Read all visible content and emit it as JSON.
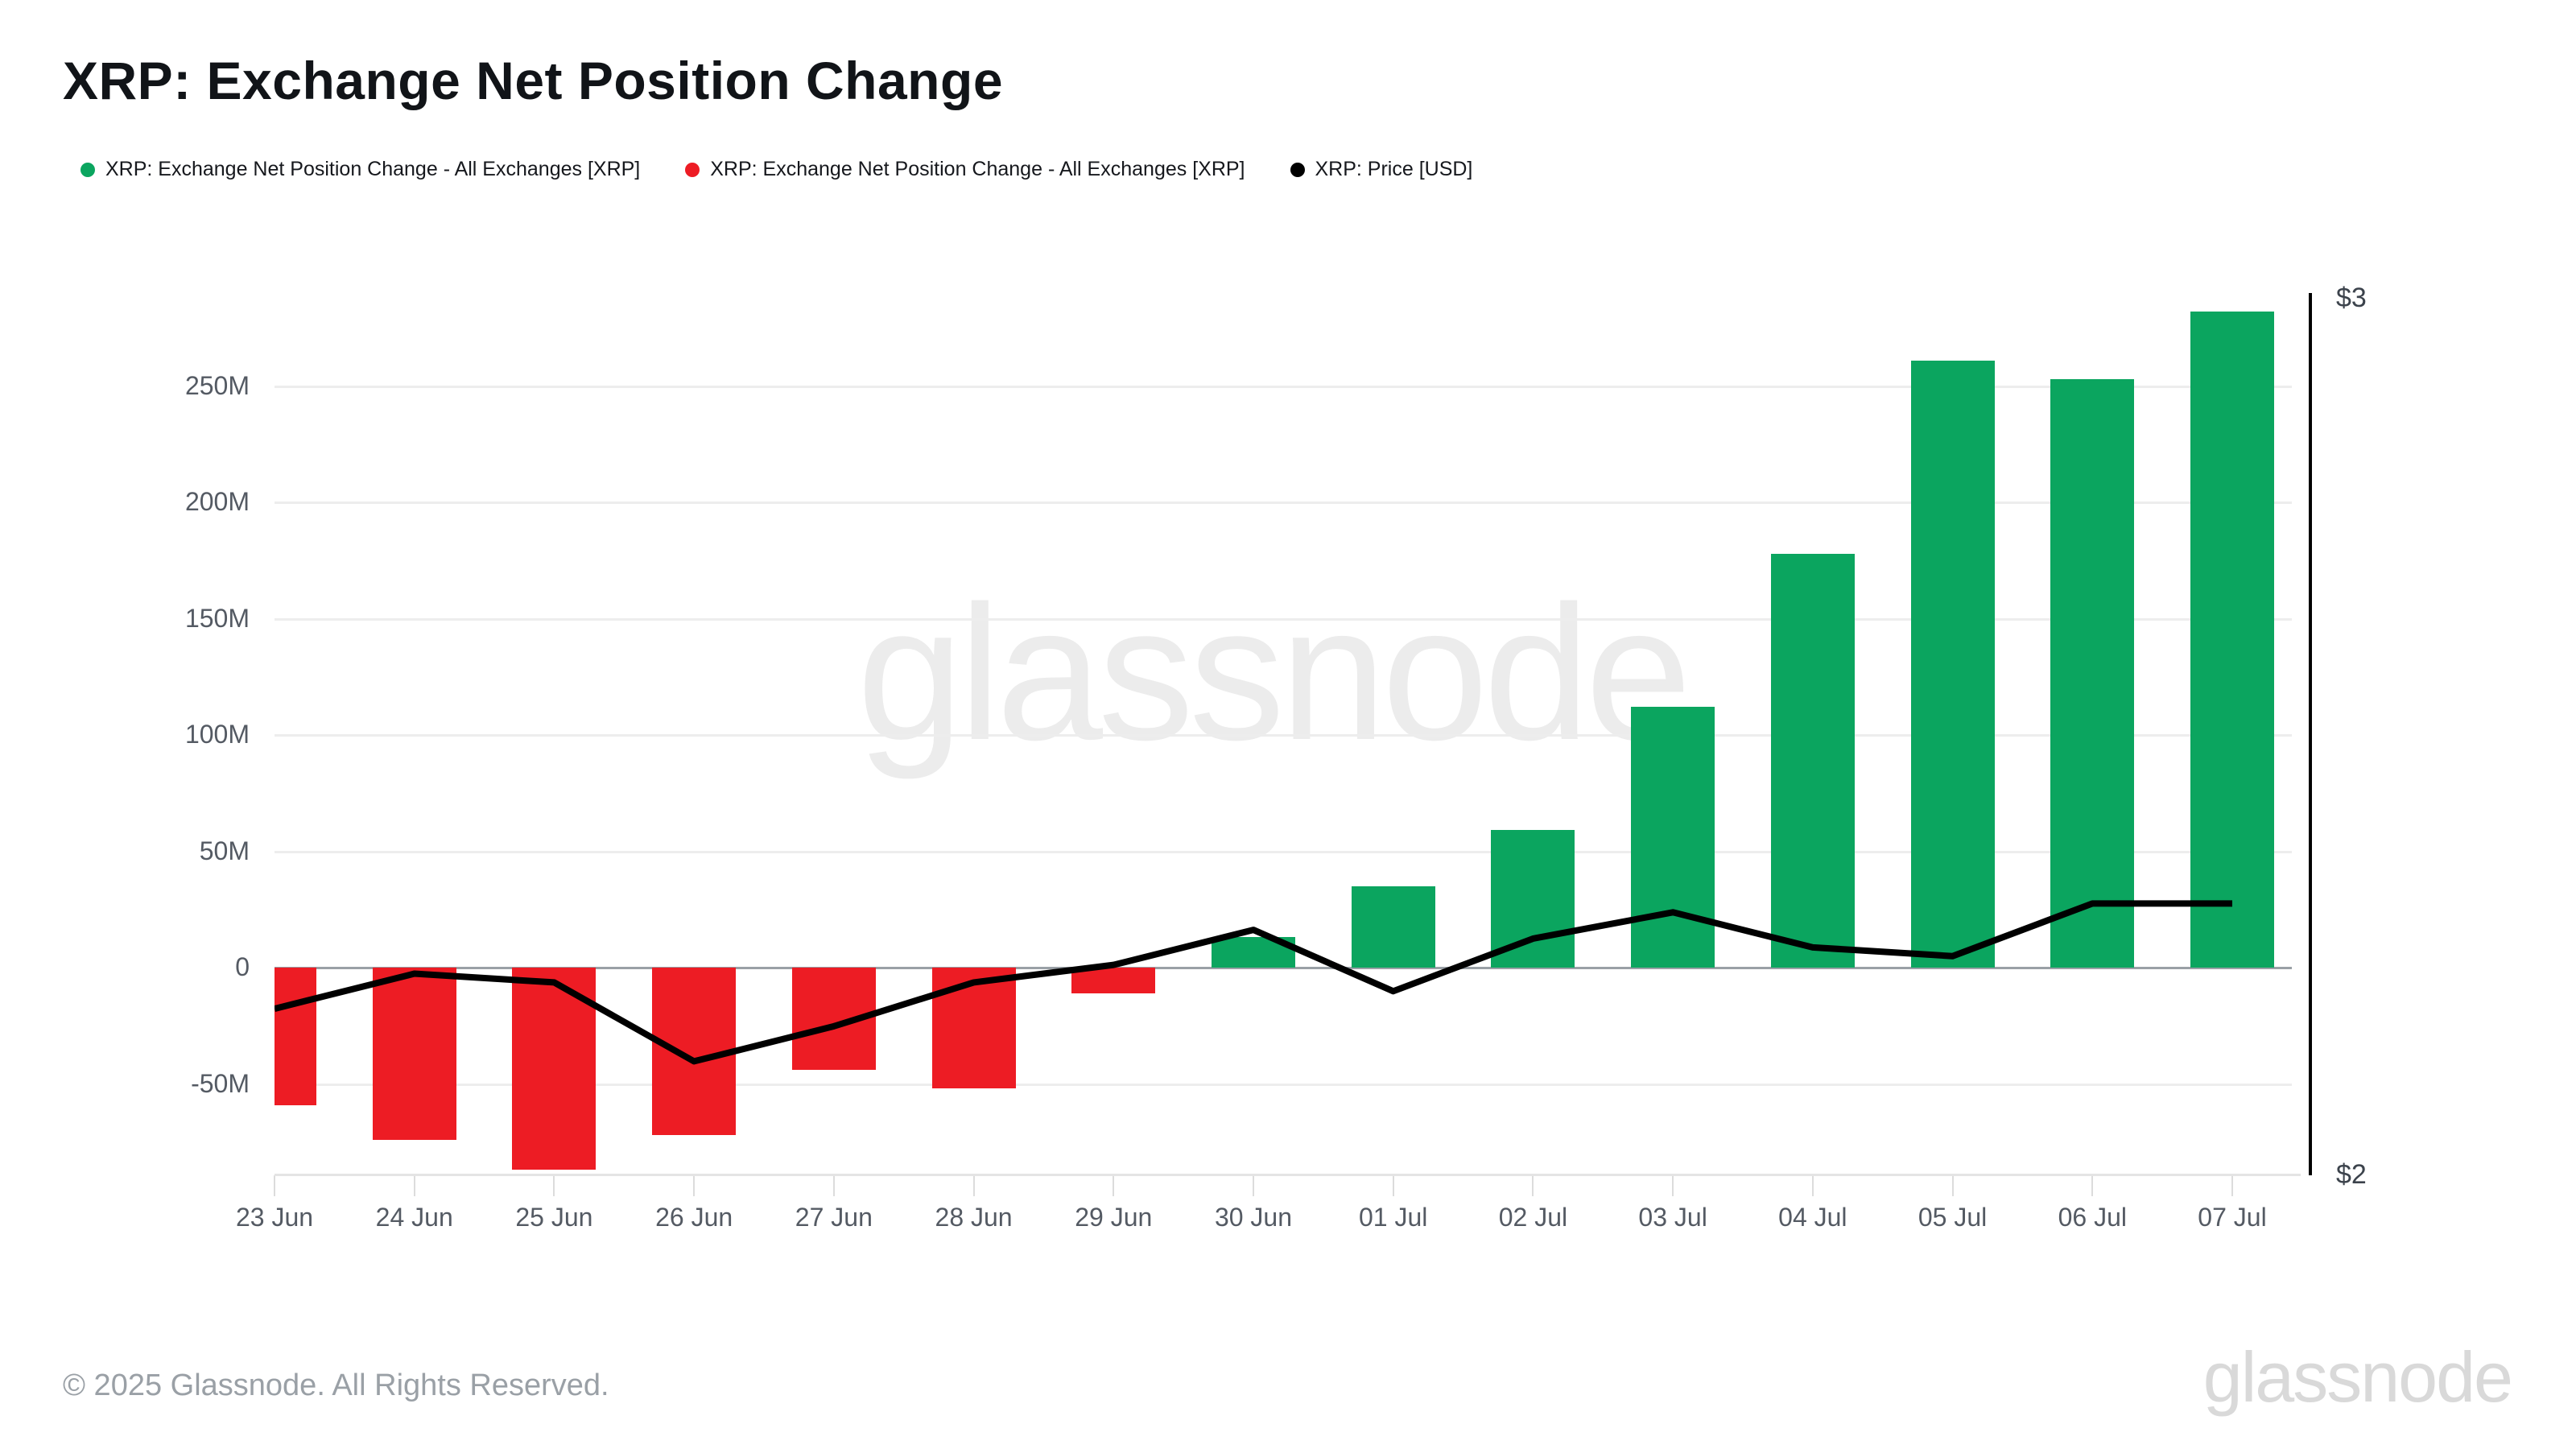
{
  "header": {
    "title": "XRP: Exchange Net Position Change"
  },
  "legend": [
    {
      "label": "XRP: Exchange Net Position Change - All Exchanges [XRP]",
      "color": "#0ba55f"
    },
    {
      "label": "XRP: Exchange Net Position Change - All Exchanges [XRP]",
      "color": "#ed1c24"
    },
    {
      "label": "XRP: Price [USD]",
      "color": "#000000"
    }
  ],
  "watermark": "glassnode",
  "footer": {
    "copyright": "© 2025 Glassnode. All Rights Reserved.",
    "brand": "glassnode"
  },
  "chart_data": {
    "type": "bar+line",
    "title": "XRP: Exchange Net Position Change",
    "categories": [
      "23 Jun",
      "24 Jun",
      "25 Jun",
      "26 Jun",
      "27 Jun",
      "28 Jun",
      "29 Jun",
      "30 Jun",
      "01 Jul",
      "02 Jul",
      "03 Jul",
      "04 Jul",
      "05 Jul",
      "06 Jul",
      "07 Jul"
    ],
    "series": [
      {
        "name": "XRP: Exchange Net Position Change - All Exchanges [XRP]",
        "type": "bar",
        "unit": "XRP, millions",
        "values": [
          -59,
          -74,
          -87,
          -72,
          -44,
          -52,
          -11,
          13,
          35,
          59,
          112,
          178,
          261,
          253,
          282
        ],
        "positive_color": "#0ba55f",
        "negative_color": "#ed1c24"
      },
      {
        "name": "XRP: Price [USD]",
        "type": "line",
        "unit": "USD",
        "color": "#000000",
        "values": [
          2.19,
          2.23,
          2.22,
          2.13,
          2.17,
          2.22,
          2.24,
          2.28,
          2.21,
          2.27,
          2.3,
          2.26,
          2.25,
          2.31,
          2.31
        ]
      }
    ],
    "y_axis_left": {
      "tick_labels": [
        "250M",
        "200M",
        "150M",
        "100M",
        "50M",
        "0",
        "-50M"
      ],
      "tick_values": [
        250,
        200,
        150,
        100,
        50,
        0,
        -50
      ],
      "unit": "XRP"
    },
    "y_axis_right": {
      "tick_labels": [
        "$3",
        "$2"
      ],
      "tick_values": [
        3,
        2
      ],
      "range": [
        2,
        3
      ]
    },
    "grid": "horizontal",
    "legend_position": "top"
  }
}
